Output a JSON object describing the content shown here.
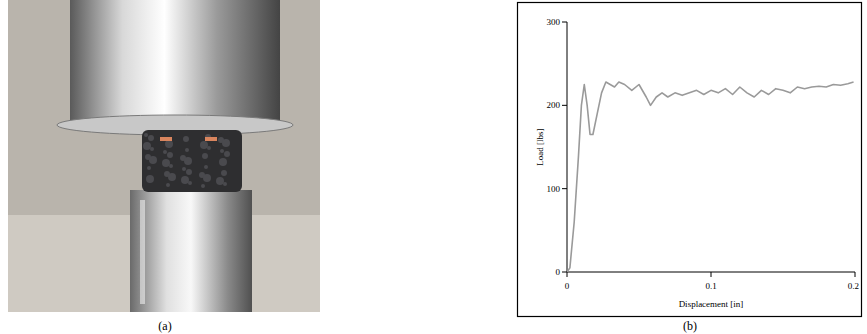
{
  "chart_data": {
    "type": "line",
    "x_label": "Displacement [in]",
    "y_label": "Load [lbs]",
    "color": "#9a9a9a",
    "xlim": [
      0,
      0.2
    ],
    "xticks": [
      0,
      0.1,
      0.2
    ],
    "ylim": [
      0,
      300
    ],
    "yticks": [
      0,
      100,
      200,
      300
    ],
    "x": [
      0,
      0.002,
      0.005,
      0.008,
      0.01,
      0.012,
      0.014,
      0.016,
      0.018,
      0.021,
      0.024,
      0.027,
      0.03,
      0.033,
      0.036,
      0.04,
      0.045,
      0.05,
      0.055,
      0.058,
      0.062,
      0.066,
      0.07,
      0.075,
      0.08,
      0.085,
      0.09,
      0.095,
      0.1,
      0.105,
      0.11,
      0.115,
      0.12,
      0.125,
      0.13,
      0.135,
      0.14,
      0.145,
      0.15,
      0.155,
      0.16,
      0.165,
      0.17,
      0.175,
      0.18,
      0.185,
      0.19,
      0.195,
      0.199
    ],
    "values": [
      0,
      5,
      60,
      140,
      200,
      225,
      200,
      165,
      165,
      190,
      215,
      228,
      225,
      222,
      228,
      225,
      218,
      225,
      210,
      200,
      210,
      215,
      210,
      215,
      212,
      215,
      218,
      213,
      218,
      215,
      220,
      213,
      222,
      215,
      210,
      218,
      213,
      220,
      218,
      215,
      222,
      220,
      222,
      223,
      222,
      225,
      224,
      226,
      228
    ]
  },
  "captions": [
    "(a)",
    "(b)"
  ]
}
